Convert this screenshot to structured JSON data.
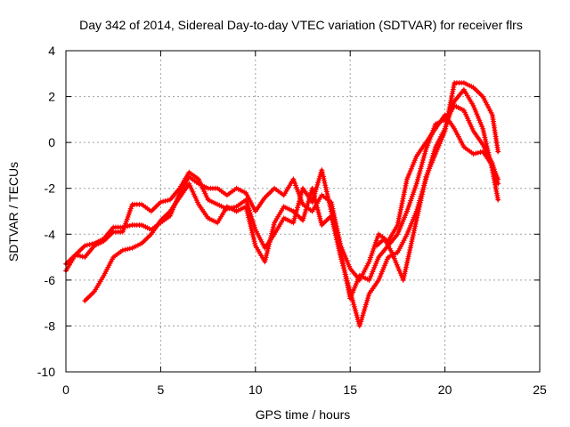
{
  "chart_data": {
    "type": "scatter",
    "title": "Day 342 of 2014, Sidereal Day-to-day VTEC variation (SDTVAR) for receiver flrs",
    "xlabel": "GPS time / hours",
    "ylabel": "SDTVAR / TECUs",
    "xlim": [
      0,
      25
    ],
    "ylim": [
      -10,
      4
    ],
    "xticks": [
      0,
      5,
      10,
      15,
      20,
      25
    ],
    "yticks": [
      -10,
      -8,
      -6,
      -4,
      -2,
      0,
      2,
      4
    ],
    "grid": true,
    "marker": "+",
    "series": [
      {
        "name": "SDTVAR",
        "color": "#ff0000",
        "tracks": [
          [
            [
              0.0,
              -5.6
            ],
            [
              0.5,
              -4.9
            ],
            [
              1.0,
              -4.5
            ],
            [
              1.5,
              -4.4
            ],
            [
              2.0,
              -4.2
            ],
            [
              2.5,
              -3.7
            ],
            [
              3.0,
              -3.7
            ],
            [
              3.5,
              -3.6
            ],
            [
              4.0,
              -3.6
            ],
            [
              4.5,
              -3.8
            ],
            [
              5.0,
              -3.5
            ],
            [
              5.5,
              -3.2
            ],
            [
              6.0,
              -2.2
            ],
            [
              6.5,
              -1.5
            ],
            [
              7.0,
              -1.8
            ],
            [
              7.5,
              -2.0
            ],
            [
              8.0,
              -2.0
            ],
            [
              8.5,
              -2.3
            ],
            [
              9.0,
              -2.0
            ],
            [
              9.5,
              -2.2
            ],
            [
              10.0,
              -3.0
            ],
            [
              10.5,
              -2.4
            ],
            [
              11.0,
              -2.0
            ],
            [
              11.5,
              -2.3
            ],
            [
              12.0,
              -1.6
            ],
            [
              12.5,
              -2.7
            ],
            [
              13.0,
              -3.0
            ],
            [
              13.5,
              -2.3
            ],
            [
              14.0,
              -2.6
            ],
            [
              14.5,
              -4.5
            ],
            [
              15.0,
              -5.5
            ],
            [
              15.5,
              -6.0
            ],
            [
              16.0,
              -5.2
            ],
            [
              16.5,
              -4.0
            ],
            [
              17.0,
              -4.3
            ],
            [
              17.5,
              -3.6
            ],
            [
              18.0,
              -1.6
            ],
            [
              18.5,
              -0.6
            ],
            [
              19.0,
              0.0
            ],
            [
              19.5,
              0.6
            ],
            [
              20.0,
              1.2
            ],
            [
              20.5,
              0.6
            ],
            [
              21.0,
              -0.2
            ],
            [
              21.5,
              -0.5
            ],
            [
              22.0,
              -0.4
            ],
            [
              22.5,
              -1.0
            ],
            [
              22.8,
              -1.6
            ]
          ],
          [
            [
              0.0,
              -5.3
            ],
            [
              0.5,
              -4.9
            ],
            [
              1.0,
              -5.0
            ],
            [
              1.5,
              -4.5
            ],
            [
              2.0,
              -4.3
            ],
            [
              2.5,
              -3.9
            ],
            [
              3.0,
              -3.9
            ],
            [
              3.5,
              -2.7
            ],
            [
              4.0,
              -2.7
            ],
            [
              4.5,
              -3.0
            ],
            [
              5.0,
              -2.6
            ],
            [
              5.5,
              -2.5
            ],
            [
              6.0,
              -2.0
            ],
            [
              6.5,
              -1.3
            ],
            [
              7.0,
              -1.6
            ],
            [
              7.5,
              -2.5
            ],
            [
              8.0,
              -2.7
            ],
            [
              8.5,
              -2.9
            ],
            [
              9.0,
              -2.8
            ],
            [
              9.5,
              -2.5
            ],
            [
              10.0,
              -3.8
            ],
            [
              10.5,
              -4.6
            ],
            [
              11.0,
              -4.0
            ],
            [
              11.5,
              -3.3
            ],
            [
              12.0,
              -3.5
            ],
            [
              12.5,
              -2.0
            ],
            [
              13.0,
              -2.6
            ],
            [
              13.5,
              -1.2
            ],
            [
              14.0,
              -3.0
            ],
            [
              14.5,
              -4.8
            ],
            [
              15.0,
              -6.8
            ],
            [
              15.5,
              -5.8
            ],
            [
              16.0,
              -6.0
            ],
            [
              16.5,
              -5.0
            ],
            [
              17.0,
              -4.5
            ],
            [
              17.5,
              -4.0
            ],
            [
              18.0,
              -3.0
            ],
            [
              18.5,
              -1.8
            ],
            [
              19.0,
              -0.3
            ],
            [
              19.5,
              0.8
            ],
            [
              20.0,
              1.0
            ],
            [
              20.5,
              1.6
            ],
            [
              21.0,
              1.4
            ],
            [
              21.5,
              0.5
            ],
            [
              22.0,
              -0.1
            ],
            [
              22.5,
              -0.9
            ],
            [
              22.8,
              -1.8
            ]
          ],
          [
            [
              1.0,
              -6.9
            ],
            [
              1.5,
              -6.5
            ],
            [
              2.0,
              -5.8
            ],
            [
              2.5,
              -5.0
            ],
            [
              3.0,
              -4.7
            ],
            [
              3.5,
              -4.6
            ],
            [
              4.0,
              -4.4
            ],
            [
              4.5,
              -4.0
            ],
            [
              5.0,
              -3.4
            ],
            [
              5.5,
              -3.0
            ],
            [
              6.0,
              -2.4
            ],
            [
              6.5,
              -1.8
            ],
            [
              7.0,
              -2.7
            ],
            [
              7.5,
              -3.3
            ],
            [
              8.0,
              -3.5
            ],
            [
              8.5,
              -2.8
            ],
            [
              9.0,
              -3.0
            ],
            [
              9.5,
              -2.8
            ],
            [
              10.0,
              -4.5
            ],
            [
              10.5,
              -5.2
            ],
            [
              11.0,
              -3.5
            ],
            [
              11.5,
              -2.8
            ],
            [
              12.0,
              -3.0
            ],
            [
              12.5,
              -3.4
            ],
            [
              13.0,
              -2.0
            ],
            [
              13.5,
              -3.6
            ],
            [
              14.0,
              -3.2
            ],
            [
              14.5,
              -5.0
            ],
            [
              15.0,
              -6.5
            ],
            [
              15.5,
              -8.0
            ],
            [
              16.0,
              -6.6
            ],
            [
              16.5,
              -6.0
            ],
            [
              17.0,
              -5.0
            ],
            [
              17.5,
              -4.8
            ],
            [
              18.0,
              -4.0
            ],
            [
              18.5,
              -3.0
            ],
            [
              19.0,
              -1.6
            ],
            [
              19.5,
              -0.2
            ],
            [
              20.0,
              0.6
            ],
            [
              20.5,
              1.8
            ],
            [
              21.0,
              2.3
            ],
            [
              21.5,
              1.6
            ],
            [
              22.0,
              0.6
            ],
            [
              22.5,
              -1.2
            ],
            [
              22.8,
              -2.5
            ]
          ],
          [
            [
              16.4,
              -4.5
            ],
            [
              16.8,
              -4.2
            ],
            [
              17.2,
              -4.8
            ],
            [
              17.6,
              -5.6
            ],
            [
              17.8,
              -6.0
            ],
            [
              18.2,
              -4.5
            ],
            [
              18.6,
              -3.0
            ],
            [
              19.0,
              -1.5
            ],
            [
              19.5,
              -0.5
            ],
            [
              20.0,
              0.5
            ],
            [
              20.5,
              2.6
            ],
            [
              21.0,
              2.6
            ],
            [
              21.5,
              2.4
            ],
            [
              22.0,
              2.0
            ],
            [
              22.5,
              1.2
            ],
            [
              22.8,
              -0.4
            ]
          ]
        ]
      }
    ]
  }
}
